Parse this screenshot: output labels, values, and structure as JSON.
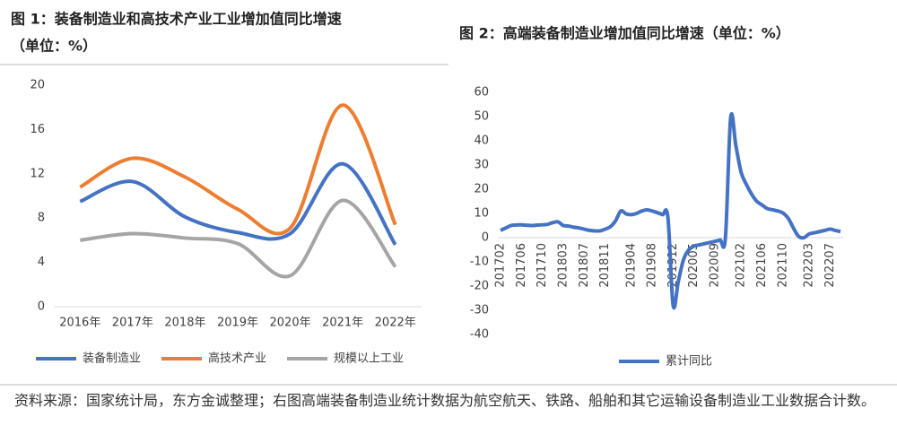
{
  "chart_data": [
    {
      "type": "line",
      "title": "图 1：装备制造业和高技术产业工业增加值同比增速",
      "subtitle": "（单位：%）",
      "categories": [
        "2016年",
        "2017年",
        "2018年",
        "2019年",
        "2020年",
        "2021年",
        "2022年"
      ],
      "series": [
        {
          "name": "装备制造业",
          "color": "#4472c4",
          "values": [
            9.5,
            11.3,
            8.1,
            6.7,
            6.6,
            12.9,
            5.6
          ]
        },
        {
          "name": "高技术产业",
          "color": "#ed7d31",
          "values": [
            10.8,
            13.4,
            11.7,
            8.8,
            7.1,
            18.2,
            7.4
          ]
        },
        {
          "name": "规模以上工业",
          "color": "#a5a5a5",
          "values": [
            6.0,
            6.6,
            6.2,
            5.7,
            2.8,
            9.6,
            3.6
          ]
        }
      ],
      "ylim": [
        0,
        20
      ],
      "yticks": [
        0,
        4,
        8,
        12,
        16,
        20
      ],
      "smooth": true,
      "legend": "bottom"
    },
    {
      "type": "line",
      "title": "图 2：高端装备制造业增加值同比增速（单位：%）",
      "categories": [
        "201702",
        null,
        null,
        null,
        "201706",
        null,
        null,
        null,
        "201710",
        null,
        null,
        null,
        "201803",
        null,
        null,
        null,
        "201807",
        null,
        null,
        null,
        "201811",
        null,
        null,
        null,
        null,
        "201904",
        null,
        null,
        null,
        "201908",
        null,
        null,
        null,
        "201912",
        null,
        null,
        null,
        "202005",
        null,
        null,
        null,
        "202009",
        null,
        null,
        null,
        null,
        "202102",
        null,
        null,
        null,
        "202106",
        null,
        null,
        null,
        "202110",
        null,
        null,
        null,
        null,
        "202203",
        null,
        null,
        null,
        "202207",
        null,
        null
      ],
      "series": [
        {
          "name": "累计同比",
          "color": "#4472c4",
          "values": [
            3,
            4,
            5,
            5.2,
            5.3,
            5.1,
            5.0,
            5.2,
            5.3,
            5.5,
            6.2,
            6.5,
            5.0,
            4.8,
            4.3,
            4.0,
            3.5,
            3.0,
            2.8,
            2.8,
            3.5,
            4.5,
            7,
            11,
            9.8,
            9.5,
            10,
            11,
            11.5,
            11,
            10.3,
            9.5,
            8.5,
            -28,
            -18,
            -9,
            -5,
            -3.5,
            -3,
            -2.5,
            -2,
            -1.5,
            -1,
            0,
            49.5,
            38,
            27,
            22,
            18,
            15,
            13.5,
            12,
            11.5,
            11,
            10.2,
            8,
            4,
            0.5,
            0,
            1.5,
            2,
            2.5,
            3,
            3.5,
            3,
            2.5
          ]
        }
      ],
      "ylim": [
        -40,
        60
      ],
      "yticks": [
        -40,
        -30,
        -20,
        -10,
        0,
        10,
        20,
        30,
        40,
        50,
        60
      ],
      "smooth": true,
      "legend": "bottom"
    }
  ],
  "note": "资料来源：国家统计局，东方金诚整理；右图高端装备制造业统计数据为航空航天、铁路、船舶和其它运输设备制造业工业数据合计数。"
}
